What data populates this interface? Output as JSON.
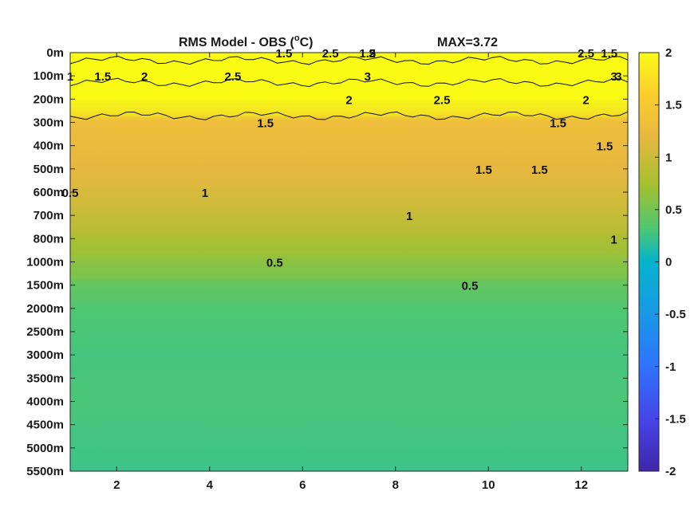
{
  "chart_data": {
    "type": "heatmap",
    "title": "RMS Model - OBS (",
    "title_superscript": "o",
    "title_suffix": "C)",
    "max_label": "MAX=3.72",
    "x_ticks": [
      "2",
      "4",
      "6",
      "8",
      "10",
      "12"
    ],
    "x_values": [
      2,
      4,
      6,
      8,
      10,
      12
    ],
    "xlim": [
      1,
      13
    ],
    "y_ticks": [
      "0m",
      "100m",
      "200m",
      "300m",
      "400m",
      "500m",
      "600m",
      "700m",
      "800m",
      "1000m",
      "1500m",
      "2000m",
      "2500m",
      "3000m",
      "3500m",
      "4000m",
      "4500m",
      "5000m",
      "5500m"
    ],
    "colorbar_ticks": [
      "2",
      "1.5",
      "1",
      "0.5",
      "0",
      "-0.5",
      "-1",
      "-1.5",
      "-2"
    ],
    "colorbar_values": [
      2,
      1.5,
      1,
      0.5,
      0,
      -0.5,
      -1,
      -1.5,
      -2
    ],
    "clim": [
      -2,
      2
    ],
    "colormap": [
      "#3e26a8",
      "#4743e8",
      "#2f73fd",
      "#1999e4",
      "#04b3cd",
      "#2bc0a5",
      "#4ec772",
      "#a2c030",
      "#e7b83f",
      "#fdcd2d",
      "#f9fb15"
    ],
    "contour_levels": [
      0.5,
      1,
      1.5,
      2,
      2.5,
      3
    ],
    "depth_profile": [
      {
        "depth": "0m",
        "value": 2.4
      },
      {
        "depth": "100m",
        "value": 2.7
      },
      {
        "depth": "200m",
        "value": 2.0
      },
      {
        "depth": "300m",
        "value": 1.3
      },
      {
        "depth": "400m",
        "value": 1.25
      },
      {
        "depth": "500m",
        "value": 1.2
      },
      {
        "depth": "600m",
        "value": 1.1
      },
      {
        "depth": "700m",
        "value": 1.0
      },
      {
        "depth": "800m",
        "value": 0.85
      },
      {
        "depth": "1000m",
        "value": 0.7
      },
      {
        "depth": "1500m",
        "value": 0.5
      },
      {
        "depth": "2000m",
        "value": 0.4
      },
      {
        "depth": "2500m",
        "value": 0.35
      },
      {
        "depth": "3000m",
        "value": 0.3
      },
      {
        "depth": "3500m",
        "value": 0.35
      },
      {
        "depth": "4000m",
        "value": 0.35
      },
      {
        "depth": "4500m",
        "value": 0.3
      },
      {
        "depth": "5000m",
        "value": 0.25
      },
      {
        "depth": "5500m",
        "value": 0.2
      }
    ],
    "contour_labels": [
      {
        "text": "1",
        "x": 1.0,
        "depth": "100m"
      },
      {
        "text": "1.5",
        "x": 1.7,
        "depth": "100m"
      },
      {
        "text": "2",
        "x": 2.6,
        "depth": "100m"
      },
      {
        "text": "2.5",
        "x": 4.5,
        "depth": "100m"
      },
      {
        "text": "1.5",
        "x": 5.6,
        "depth": "0m"
      },
      {
        "text": "2.5",
        "x": 6.6,
        "depth": "0m"
      },
      {
        "text": "1.5",
        "x": 7.4,
        "depth": "0m"
      },
      {
        "text": "2",
        "x": 7.5,
        "depth": "0m"
      },
      {
        "text": "3",
        "x": 7.5,
        "depth": "0m"
      },
      {
        "text": "3",
        "x": 7.4,
        "depth": "100m"
      },
      {
        "text": "2",
        "x": 7.0,
        "depth": "200m"
      },
      {
        "text": "2.5",
        "x": 9.0,
        "depth": "200m"
      },
      {
        "text": "1.5",
        "x": 5.2,
        "depth": "300m"
      },
      {
        "text": "1.5",
        "x": 11.5,
        "depth": "300m"
      },
      {
        "text": "1.5",
        "x": 12.6,
        "depth": "0m"
      },
      {
        "text": "2.5",
        "x": 12.1,
        "depth": "0m"
      },
      {
        "text": "3",
        "x": 12.8,
        "depth": "100m"
      },
      {
        "text": "3",
        "x": 12.7,
        "depth": "100m"
      },
      {
        "text": "2",
        "x": 12.1,
        "depth": "200m"
      },
      {
        "text": "1.5",
        "x": 12.5,
        "depth": "400m"
      },
      {
        "text": "1.5",
        "x": 11.1,
        "depth": "500m"
      },
      {
        "text": "1.5",
        "x": 9.9,
        "depth": "500m"
      },
      {
        "text": "0.5",
        "x": 1.0,
        "depth": "600m"
      },
      {
        "text": "1",
        "x": 3.9,
        "depth": "600m"
      },
      {
        "text": "1",
        "x": 8.3,
        "depth": "700m"
      },
      {
        "text": "1",
        "x": 12.7,
        "depth": "800m"
      },
      {
        "text": "0.5",
        "x": 5.4,
        "depth": "1000m"
      },
      {
        "text": "0.5",
        "x": 9.6,
        "depth": "1500m"
      }
    ]
  }
}
